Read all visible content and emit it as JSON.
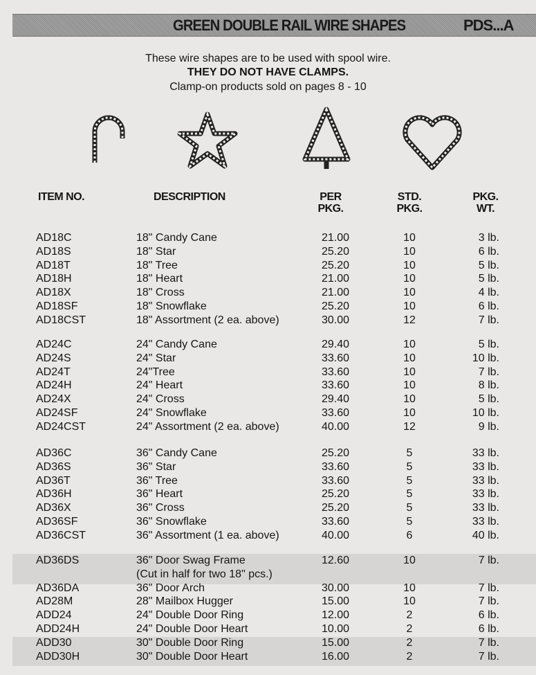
{
  "header": {
    "title": "GREEN DOUBLE RAIL WIRE SHAPES",
    "code": "PDS...A"
  },
  "intro": {
    "line1": "These wire shapes are to be used with spool wire.",
    "line2": "THEY DO NOT HAVE CLAMPS.",
    "line3": "Clamp-on products sold on pages 8 - 10"
  },
  "shapes": [
    "candy-cane-icon",
    "star-icon",
    "tree-icon",
    "heart-icon"
  ],
  "columns": {
    "item": "ITEM NO.",
    "description": "DESCRIPTION",
    "per_pkg": [
      "PER",
      "PKG."
    ],
    "std_pkg": [
      "STD.",
      "PKG."
    ],
    "pkg_wt": [
      "PKG.",
      "WT."
    ]
  },
  "rows": [
    {
      "item": "AD18C",
      "desc": "18\" Candy Cane",
      "per": "21.00",
      "std": "10",
      "wt": "3 lb."
    },
    {
      "item": "AD18S",
      "desc": "18\" Star",
      "per": "25.20",
      "std": "10",
      "wt": "6 lb."
    },
    {
      "item": "AD18T",
      "desc": "18\" Tree",
      "per": "25.20",
      "std": "10",
      "wt": "5 lb."
    },
    {
      "item": "AD18H",
      "desc": "18\" Heart",
      "per": "21.00",
      "std": "10",
      "wt": "5 lb."
    },
    {
      "item": "AD18X",
      "desc": "18\" Cross",
      "per": "21.00",
      "std": "10",
      "wt": "4 lb."
    },
    {
      "item": "AD18SF",
      "desc": "18\" Snowflake",
      "per": "25.20",
      "std": "10",
      "wt": "6 lb."
    },
    {
      "item": "AD18CST",
      "desc": "18\" Assortment (2 ea. above)",
      "per": "30.00",
      "std": "12",
      "wt": "7 lb."
    },
    {
      "item": "AD24C",
      "desc": "24\" Candy Cane",
      "per": "29.40",
      "std": "10",
      "wt": "5 lb."
    },
    {
      "item": "AD24S",
      "desc": "24\" Star",
      "per": "33.60",
      "std": "10",
      "wt": "10 lb."
    },
    {
      "item": "AD24T",
      "desc": "24\"Tree",
      "per": "33.60",
      "std": "10",
      "wt": "7 lb."
    },
    {
      "item": "AD24H",
      "desc": "24\" Heart",
      "per": "33.60",
      "std": "10",
      "wt": "8 lb."
    },
    {
      "item": "AD24X",
      "desc": "24\" Cross",
      "per": "29.40",
      "std": "10",
      "wt": "5 lb."
    },
    {
      "item": "AD24SF",
      "desc": "24\" Snowflake",
      "per": "33.60",
      "std": "10",
      "wt": "10 lb."
    },
    {
      "item": "AD24CST",
      "desc": "24\" Assortment (2 ea. above)",
      "per": "40.00",
      "std": "12",
      "wt": "9 lb."
    },
    {
      "item": "AD36C",
      "desc": "36\" Candy Cane",
      "per": "25.20",
      "std": "5",
      "wt": "33 lb."
    },
    {
      "item": "AD36S",
      "desc": "36\" Star",
      "per": "33.60",
      "std": "5",
      "wt": "33 lb."
    },
    {
      "item": "AD36T",
      "desc": "36\" Tree",
      "per": "33.60",
      "std": "5",
      "wt": "33 lb."
    },
    {
      "item": "AD36H",
      "desc": "36\" Heart",
      "per": "25.20",
      "std": "5",
      "wt": "33 lb."
    },
    {
      "item": "AD36X",
      "desc": "36\" Cross",
      "per": "25.20",
      "std": "5",
      "wt": "33 lb."
    },
    {
      "item": "AD36SF",
      "desc": "36\" Snowflake",
      "per": "33.60",
      "std": "5",
      "wt": "33 lb."
    },
    {
      "item": "AD36CST",
      "desc": "36\" Assortment (1 ea. above)",
      "per": "40.00",
      "std": "6",
      "wt": "40 lb."
    },
    {
      "item": "AD36DS",
      "desc": "36\" Door Swag Frame",
      "per": "12.60",
      "std": "10",
      "wt": "7 lb."
    },
    {
      "item": "",
      "desc": "(Cut in half for two 18\" pcs.)",
      "per": "",
      "std": "",
      "wt": ""
    },
    {
      "item": "AD36DA",
      "desc": "36\" Door Arch",
      "per": "30.00",
      "std": "10",
      "wt": "7 lb."
    },
    {
      "item": "AD28M",
      "desc": "28\" Mailbox Hugger",
      "per": "15.00",
      "std": "10",
      "wt": "7 lb."
    },
    {
      "item": "ADD24",
      "desc": "24\" Double Door Ring",
      "per": "12.00",
      "std": "2",
      "wt": "6 lb."
    },
    {
      "item": "ADD24H",
      "desc": "24\" Double Door Heart",
      "per": "10.00",
      "std": "2",
      "wt": "6 lb."
    },
    {
      "item": "ADD30",
      "desc": "30\" Double Door Ring",
      "per": "15.00",
      "std": "2",
      "wt": "7 lb."
    },
    {
      "item": "ADD30H",
      "desc": "30\" Double Door Heart",
      "per": "16.00",
      "std": "2",
      "wt": "7 lb."
    }
  ]
}
